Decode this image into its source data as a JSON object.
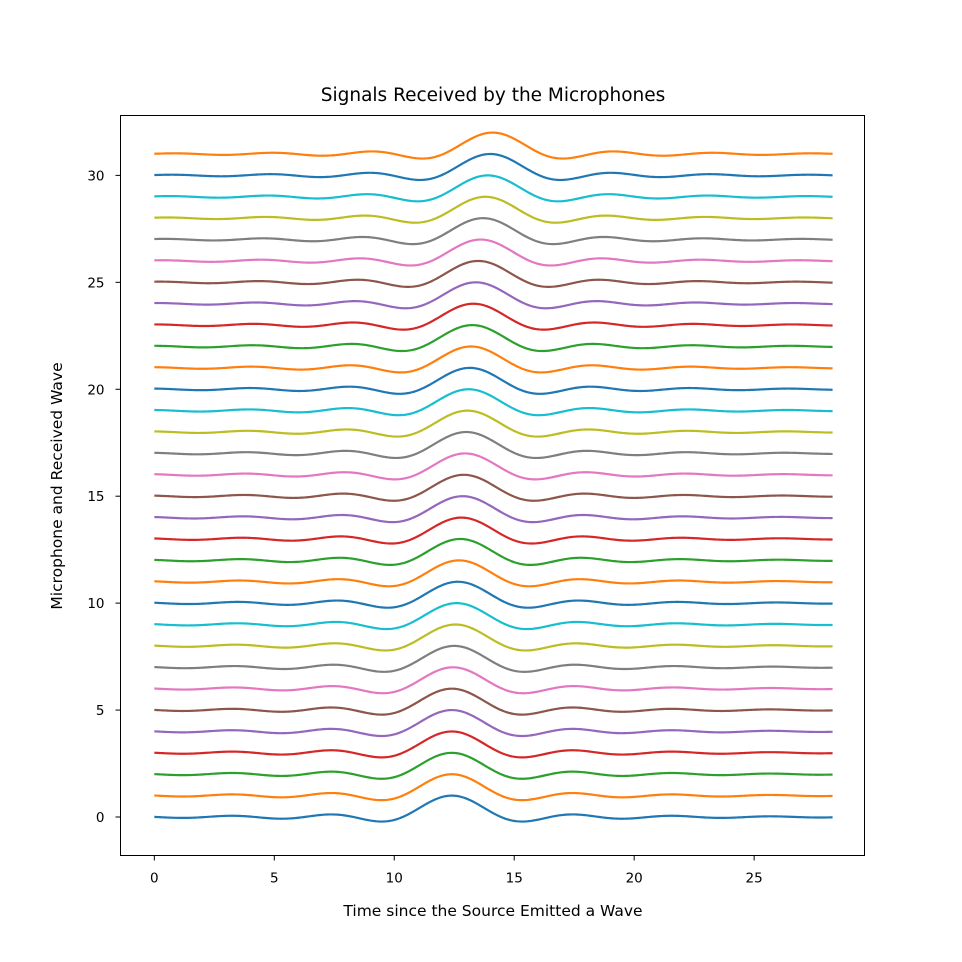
{
  "chart_data": {
    "type": "line",
    "title": "Signals Received by the Microphones",
    "xlabel": "Time since the Source Emitted a Wave",
    "ylabel": "Microphone and Received Wave",
    "xlim": [
      -1.41,
      29.6
    ],
    "ylim": [
      -1.8,
      32.8
    ],
    "x_ticks": [
      0,
      5,
      10,
      15,
      20,
      25
    ],
    "y_ticks": [
      0,
      5,
      10,
      15,
      20,
      25,
      30
    ],
    "x_range": [
      0,
      28.27
    ],
    "grid": false,
    "legend": "none",
    "signal_model": {
      "description": "each microphone trace = offset + pulse(t - center)",
      "shape": "1 - 0.5*(1 - cos(2*pi*u/2.4)) ... windowed; sinc-like pulse with main lobe amplitude 1 and side lobes",
      "main_lobe_amplitude": 1.0,
      "main_lobe_halfwidth": 1.6,
      "side_lobe_period": 4.1
    },
    "series": [
      {
        "offset": 0,
        "center": 12.4,
        "color": "#1f77b4"
      },
      {
        "offset": 1,
        "center": 12.4,
        "color": "#ff7f0e"
      },
      {
        "offset": 2,
        "center": 12.4,
        "color": "#2ca02c"
      },
      {
        "offset": 3,
        "center": 12.4,
        "color": "#d62728"
      },
      {
        "offset": 4,
        "center": 12.4,
        "color": "#9467bd"
      },
      {
        "offset": 5,
        "center": 12.4,
        "color": "#8c564b"
      },
      {
        "offset": 6,
        "center": 12.45,
        "color": "#e377c2"
      },
      {
        "offset": 7,
        "center": 12.5,
        "color": "#7f7f7f"
      },
      {
        "offset": 8,
        "center": 12.55,
        "color": "#bcbd22"
      },
      {
        "offset": 9,
        "center": 12.6,
        "color": "#17becf"
      },
      {
        "offset": 10,
        "center": 12.65,
        "color": "#1f77b4"
      },
      {
        "offset": 11,
        "center": 12.7,
        "color": "#ff7f0e"
      },
      {
        "offset": 12,
        "center": 12.75,
        "color": "#2ca02c"
      },
      {
        "offset": 13,
        "center": 12.8,
        "color": "#d62728"
      },
      {
        "offset": 14,
        "center": 12.85,
        "color": "#9467bd"
      },
      {
        "offset": 15,
        "center": 12.9,
        "color": "#8c564b"
      },
      {
        "offset": 16,
        "center": 12.95,
        "color": "#e377c2"
      },
      {
        "offset": 17,
        "center": 13.0,
        "color": "#7f7f7f"
      },
      {
        "offset": 18,
        "center": 13.05,
        "color": "#bcbd22"
      },
      {
        "offset": 19,
        "center": 13.1,
        "color": "#17becf"
      },
      {
        "offset": 20,
        "center": 13.15,
        "color": "#1f77b4"
      },
      {
        "offset": 21,
        "center": 13.2,
        "color": "#ff7f0e"
      },
      {
        "offset": 22,
        "center": 13.25,
        "color": "#2ca02c"
      },
      {
        "offset": 23,
        "center": 13.3,
        "color": "#d62728"
      },
      {
        "offset": 24,
        "center": 13.4,
        "color": "#9467bd"
      },
      {
        "offset": 25,
        "center": 13.5,
        "color": "#8c564b"
      },
      {
        "offset": 26,
        "center": 13.6,
        "color": "#e377c2"
      },
      {
        "offset": 27,
        "center": 13.7,
        "color": "#7f7f7f"
      },
      {
        "offset": 28,
        "center": 13.8,
        "color": "#bcbd22"
      },
      {
        "offset": 29,
        "center": 13.9,
        "color": "#17becf"
      },
      {
        "offset": 30,
        "center": 14.0,
        "color": "#1f77b4"
      },
      {
        "offset": 31,
        "center": 14.1,
        "color": "#ff7f0e"
      }
    ]
  }
}
